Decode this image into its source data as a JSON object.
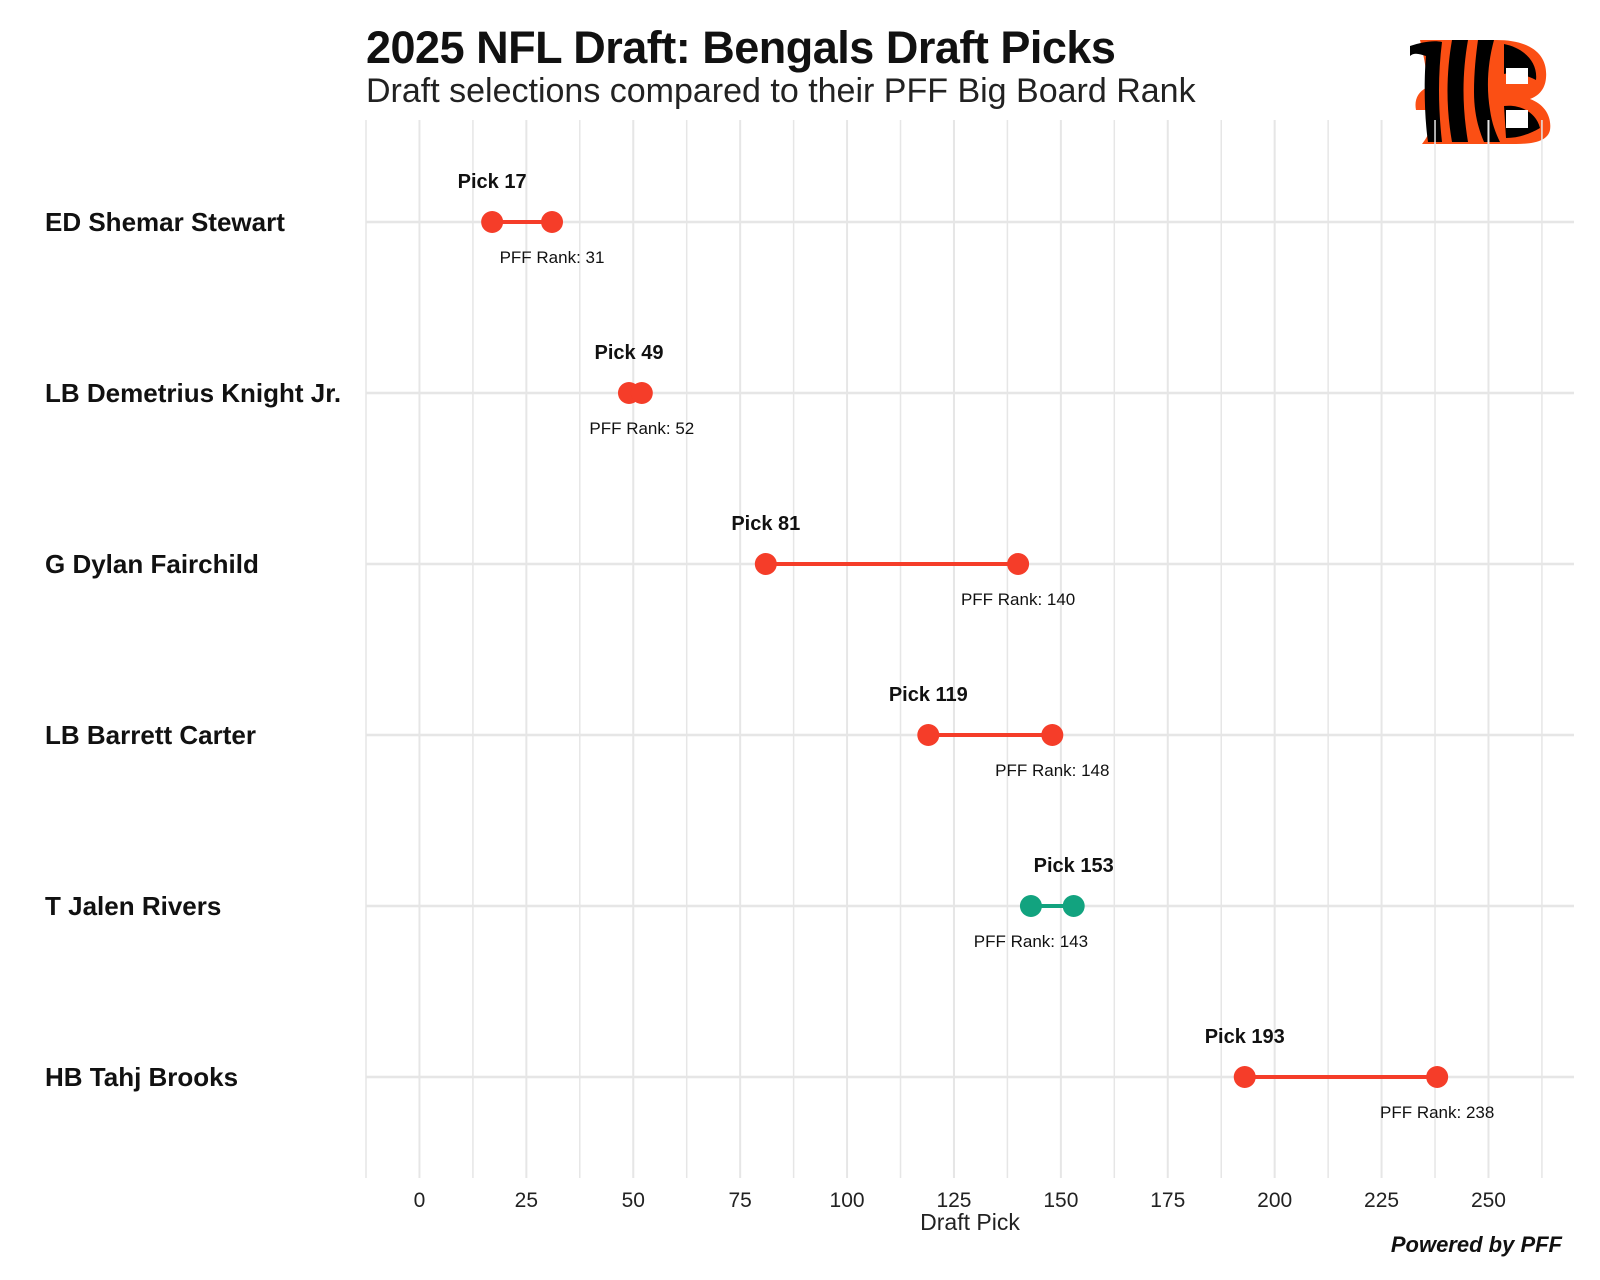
{
  "title": "2025 NFL Draft: Bengals Draft Picks",
  "subtitle": "Draft selections compared to their PFF Big Board Rank",
  "footer": "Powered by PFF",
  "logo_icon": "bengals-b-stripes-logo",
  "chart_data": {
    "type": "dumbbell",
    "xlabel": "Draft Pick",
    "ylabel": "",
    "xlim": [
      -12.5,
      270
    ],
    "xticks": [
      0,
      25,
      50,
      75,
      100,
      125,
      150,
      175,
      200,
      225,
      250
    ],
    "grid": true,
    "colors": {
      "reach": "#f53d29",
      "value": "#12a37f",
      "grid": "#e6e6e6"
    },
    "players": [
      {
        "name": "ED Shemar Stewart",
        "pick": 17,
        "pff_rank": 31,
        "pick_label": "Pick 17",
        "rank_label": "PFF Rank: 31",
        "color": "#f53d29"
      },
      {
        "name": "LB Demetrius Knight Jr.",
        "pick": 49,
        "pff_rank": 52,
        "pick_label": "Pick 49",
        "rank_label": "PFF Rank: 52",
        "color": "#f53d29"
      },
      {
        "name": "G Dylan Fairchild",
        "pick": 81,
        "pff_rank": 140,
        "pick_label": "Pick 81",
        "rank_label": "PFF Rank: 140",
        "color": "#f53d29"
      },
      {
        "name": "LB Barrett Carter",
        "pick": 119,
        "pff_rank": 148,
        "pick_label": "Pick 119",
        "rank_label": "PFF Rank: 148",
        "color": "#f53d29"
      },
      {
        "name": "T Jalen Rivers",
        "pick": 153,
        "pff_rank": 143,
        "pick_label": "Pick 153",
        "rank_label": "PFF Rank: 143",
        "color": "#12a37f"
      },
      {
        "name": "HB Tahj Brooks",
        "pick": 193,
        "pff_rank": 238,
        "pick_label": "Pick 193",
        "rank_label": "PFF Rank: 238",
        "color": "#f53d29"
      }
    ]
  }
}
